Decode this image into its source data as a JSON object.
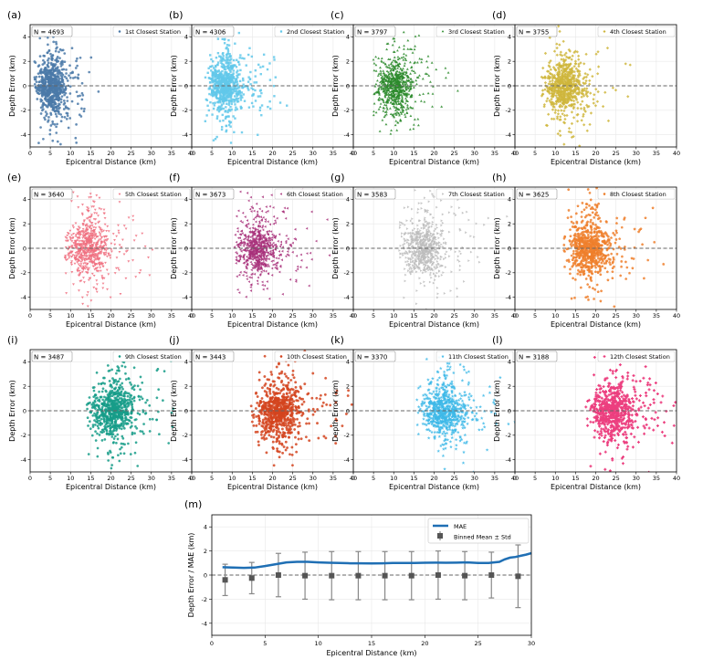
{
  "chart_data": {
    "scatter_panels": [
      {
        "label": "(a)",
        "n_text": "N = 4693",
        "legend": "1st Closest Station",
        "color": "#4a79a8",
        "marker": "circle",
        "center": 5,
        "spread": 2.2,
        "count": 4693
      },
      {
        "label": "(b)",
        "n_text": "N = 4306",
        "legend": "2nd Closest Station",
        "color": "#62c8ea",
        "marker": "square",
        "center": 8,
        "spread": 2.6,
        "count": 4306
      },
      {
        "label": "(c)",
        "n_text": "N = 3797",
        "legend": "3rd Closest Station",
        "color": "#2a8a2a",
        "marker": "triangle",
        "center": 10,
        "spread": 2.8,
        "count": 3797
      },
      {
        "label": "(d)",
        "n_text": "N = 3755",
        "legend": "4th Closest Station",
        "color": "#cfb63c",
        "marker": "diamond",
        "center": 12,
        "spread": 3,
        "count": 3755
      },
      {
        "label": "(e)",
        "n_text": "N = 3640",
        "legend": "5th Closest Station",
        "color": "#f07080",
        "marker": "tri-down",
        "center": 14,
        "spread": 3,
        "count": 3640
      },
      {
        "label": "(f)",
        "n_text": "N = 3673",
        "legend": "6th Closest Station",
        "color": "#a8307a",
        "marker": "tri-left",
        "center": 16,
        "spread": 3,
        "count": 3673
      },
      {
        "label": "(g)",
        "n_text": "N = 3583",
        "legend": "7th Closest Station",
        "color": "#bdbdbd",
        "marker": "tri-right",
        "center": 17,
        "spread": 3.2,
        "count": 3583
      },
      {
        "label": "(h)",
        "n_text": "N = 3625",
        "legend": "8th Closest Station",
        "color": "#ee7f2c",
        "marker": "pentagon",
        "center": 18,
        "spread": 3.3,
        "count": 3625
      },
      {
        "label": "(i)",
        "n_text": "N = 3487",
        "legend": "9th Closest Station",
        "color": "#169c88",
        "marker": "hexagon",
        "center": 20,
        "spread": 3.3,
        "count": 3487
      },
      {
        "label": "(j)",
        "n_text": "N = 3443",
        "legend": "10th Closest Station",
        "color": "#d3441e",
        "marker": "octagon",
        "center": 21,
        "spread": 3.5,
        "count": 3443
      },
      {
        "label": "(k)",
        "n_text": "N = 3370",
        "legend": "11th Closest Station",
        "color": "#3db8e8",
        "marker": "star",
        "center": 22,
        "spread": 3.5,
        "count": 3370
      },
      {
        "label": "(l)",
        "n_text": "N = 3188",
        "legend": "12th Closest Station",
        "color": "#ec3f7f",
        "marker": "plus",
        "center": 24,
        "spread": 3.6,
        "count": 3188
      }
    ],
    "scatter_axes": {
      "type": "scatter",
      "xlabel": "Epicentral Distance (km)",
      "ylabel": "Depth Error (km)",
      "xlim": [
        0,
        40
      ],
      "ylim": [
        -5,
        5
      ],
      "xticks": [
        0,
        5,
        10,
        15,
        20,
        25,
        30,
        35,
        40
      ],
      "yticks": [
        -4,
        -2,
        0,
        2,
        4
      ],
      "zero_line": 0
    },
    "summary_panel": {
      "label": "(m)",
      "type": "line",
      "xlabel": "Epicentral Distance (km)",
      "ylabel": "Depth Error / MAE (km)",
      "xlim": [
        0,
        30
      ],
      "ylim": [
        -5,
        5
      ],
      "xticks": [
        0,
        5,
        10,
        15,
        20,
        25,
        30
      ],
      "yticks": [
        -4,
        -2,
        0,
        2,
        4
      ],
      "legend_mae": "MAE",
      "legend_binned": "Binned Mean ± Std",
      "mae_color": "#1f6fb4",
      "binned_color": "#555555",
      "mae_x": [
        1,
        2,
        3,
        4,
        5,
        6,
        7,
        8,
        9,
        10,
        11,
        12,
        13,
        14,
        15,
        16,
        17,
        18,
        19,
        20,
        21,
        22,
        23,
        24,
        25,
        26,
        27,
        27.5,
        28,
        28.5,
        29,
        29.5,
        30
      ],
      "mae_y": [
        0.65,
        0.62,
        0.6,
        0.62,
        0.75,
        0.9,
        1.05,
        1.1,
        1.1,
        1.05,
        1.02,
        1.0,
        0.98,
        0.98,
        0.96,
        0.98,
        1.0,
        1.0,
        1.0,
        1.02,
        1.03,
        1.02,
        1.03,
        1.05,
        1.0,
        1.0,
        1.1,
        1.3,
        1.45,
        1.5,
        1.6,
        1.7,
        1.82
      ],
      "binned_x": [
        1.25,
        3.75,
        6.25,
        8.75,
        11.25,
        13.75,
        16.25,
        18.75,
        21.25,
        23.75,
        26.25,
        28.75
      ],
      "binned_mean": [
        -0.4,
        -0.25,
        0.0,
        -0.05,
        -0.05,
        -0.05,
        -0.05,
        -0.05,
        0.0,
        -0.05,
        0.0,
        -0.1
      ],
      "binned_std": [
        1.3,
        1.3,
        1.8,
        1.95,
        2.0,
        2.0,
        2.0,
        2.0,
        2.0,
        2.0,
        1.9,
        2.6
      ]
    }
  }
}
